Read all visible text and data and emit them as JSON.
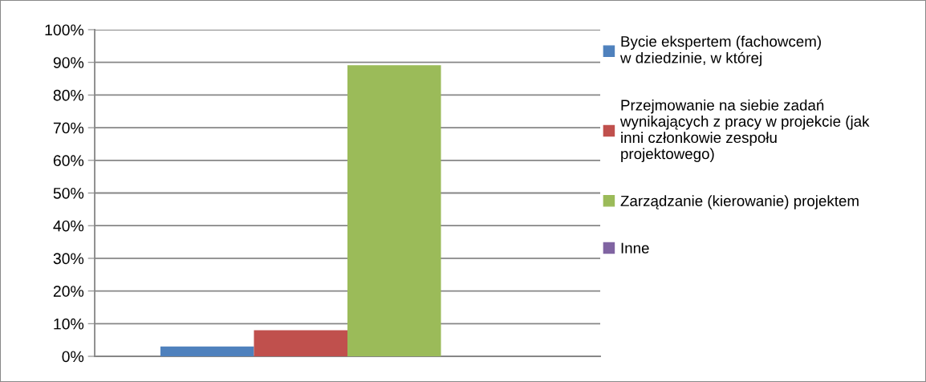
{
  "chart_data": {
    "type": "bar",
    "categories": [
      null
    ],
    "series": [
      {
        "name": "Bycie ekspertem (fachowcem)\nw dziedzinie, w której",
        "color": "#4f81bd",
        "values": [
          3.0
        ]
      },
      {
        "name": "Przejmowanie na siebie zadań\nwynikających z pracy w projekcie (jak\ninni członkowie zespołu\nprojektowego)",
        "color": "#c0504d",
        "values": [
          8.0
        ]
      },
      {
        "name": "Zarządzanie (kierowanie) projektem",
        "color": "#9bbb59",
        "values": [
          89.1
        ]
      },
      {
        "name": "Inne",
        "color": "#8064a2",
        "values": [
          0
        ]
      }
    ],
    "ylim": [
      0,
      100
    ],
    "yticks": [
      {
        "value": 0,
        "label": "0%"
      },
      {
        "value": 10,
        "label": "10%"
      },
      {
        "value": 20,
        "label": "20%"
      },
      {
        "value": 30,
        "label": "30%"
      },
      {
        "value": 40,
        "label": "40%"
      },
      {
        "value": 50,
        "label": "50%"
      },
      {
        "value": 60,
        "label": "60%"
      },
      {
        "value": 70,
        "label": "70%"
      },
      {
        "value": 80,
        "label": "80%"
      },
      {
        "value": 90,
        "label": "90%"
      },
      {
        "value": 100,
        "label": "100%"
      }
    ],
    "grid": "y",
    "legend": "right"
  }
}
